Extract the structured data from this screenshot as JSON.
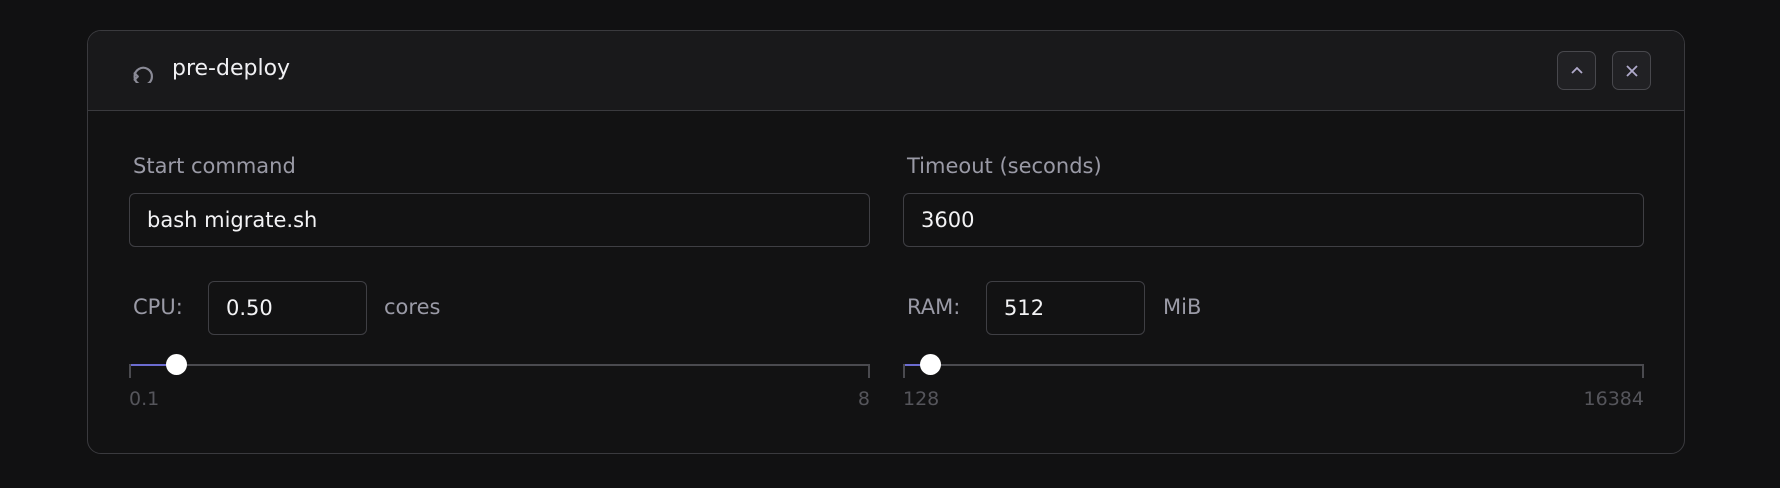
{
  "panel": {
    "title": "pre-deploy",
    "icon": "rotate-ccw-icon",
    "collapse_icon": "chevron-up-icon",
    "close_icon": "close-icon"
  },
  "start_command": {
    "label": "Start command",
    "value": "bash migrate.sh"
  },
  "timeout": {
    "label": "Timeout (seconds)",
    "value": "3600"
  },
  "cpu": {
    "label": "CPU:",
    "value": "0.50",
    "unit": "cores",
    "min": 0.1,
    "max": 8,
    "min_label": "0.1",
    "max_label": "8",
    "current": 0.5
  },
  "ram": {
    "label": "RAM:",
    "value": "512",
    "unit": "MiB",
    "min": 128,
    "max": 16384,
    "min_label": "128",
    "max_label": "16384",
    "current": 512
  },
  "colors": {
    "accent": "#6c6cd0",
    "background": "#111112"
  }
}
